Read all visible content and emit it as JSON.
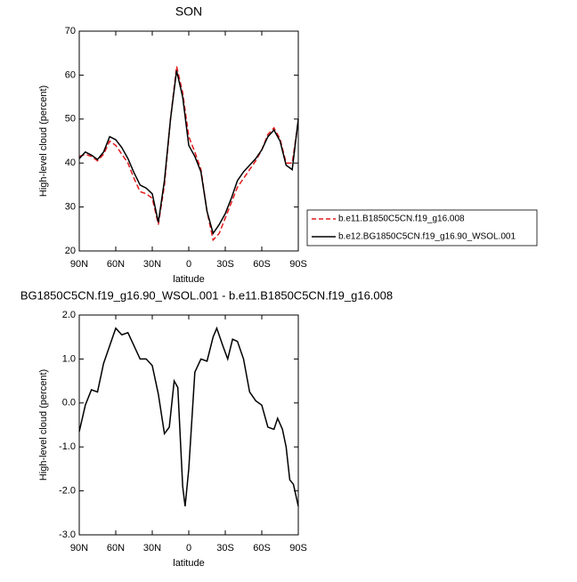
{
  "chart_data": [
    {
      "type": "line",
      "title": "SON",
      "x_label": "latitude",
      "y_label": "High-level cloud (percent)",
      "xlim": [
        90,
        -90
      ],
      "ylim": [
        20,
        70
      ],
      "xticks": [
        {
          "value": 90,
          "label": "90N"
        },
        {
          "value": 60,
          "label": "60N"
        },
        {
          "value": 30,
          "label": "30N"
        },
        {
          "value": 0,
          "label": "0"
        },
        {
          "value": -30,
          "label": "30S"
        },
        {
          "value": -60,
          "label": "60S"
        },
        {
          "value": -90,
          "label": "90S"
        }
      ],
      "yticks": [
        20,
        30,
        40,
        50,
        60,
        70
      ],
      "legend": "right",
      "x": [
        90,
        85,
        80,
        75,
        70,
        65,
        60,
        55,
        50,
        45,
        40,
        35,
        30,
        25,
        20,
        15,
        10,
        5,
        0,
        -5,
        -10,
        -15,
        -20,
        -25,
        -30,
        -35,
        -40,
        -45,
        -50,
        -55,
        -60,
        -65,
        -70,
        -75,
        -80,
        -85,
        -90
      ],
      "series": [
        {
          "name": "b.e11.B1850C5CN.f19_g16.008",
          "color": "#e41a1c",
          "dash": true,
          "values": [
            41.5,
            42.0,
            41.5,
            40.5,
            42.0,
            45.0,
            44.0,
            42.0,
            40.0,
            36.5,
            33.5,
            33.0,
            32.0,
            26.0,
            35.0,
            50.0,
            62.0,
            56.0,
            46.0,
            42.5,
            38.5,
            29.0,
            22.5,
            24.0,
            27.5,
            31.0,
            34.5,
            36.5,
            38.5,
            40.5,
            43.0,
            46.5,
            48.0,
            45.5,
            40.0,
            40.0,
            49.5
          ]
        },
        {
          "name": "b.e12.BG1850C5CN.f19_g16.90_WSOL.001",
          "color": "#000000",
          "dash": false,
          "values": [
            41.0,
            42.5,
            41.8,
            40.8,
            42.5,
            46.0,
            45.3,
            43.5,
            41.0,
            37.8,
            35.0,
            34.3,
            33.0,
            26.5,
            36.0,
            50.0,
            61.0,
            55.0,
            44.0,
            41.5,
            38.0,
            29.0,
            24.0,
            26.0,
            28.5,
            32.0,
            36.0,
            38.0,
            39.5,
            41.0,
            43.0,
            46.0,
            47.5,
            45.0,
            39.5,
            38.5,
            50.0
          ]
        }
      ]
    },
    {
      "type": "line",
      "title": "BG1850C5CN.f19_g16.90_WSOL.001 - b.e11.B1850C5CN.f19_g16.008",
      "x_label": "latitude",
      "y_label": "High-level cloud (percent)",
      "xlim": [
        90,
        -90
      ],
      "ylim": [
        -3,
        2
      ],
      "xticks": [
        {
          "value": 90,
          "label": "90N"
        },
        {
          "value": 60,
          "label": "60N"
        },
        {
          "value": 30,
          "label": "30N"
        },
        {
          "value": 0,
          "label": "0"
        },
        {
          "value": -30,
          "label": "30S"
        },
        {
          "value": -60,
          "label": "60S"
        },
        {
          "value": -90,
          "label": "90S"
        }
      ],
      "yticks": [
        {
          "value": -3,
          "label": "-3.0"
        },
        {
          "value": -2,
          "label": "-2.0"
        },
        {
          "value": -1,
          "label": "-1.0"
        },
        {
          "value": 0,
          "label": "0.0"
        },
        {
          "value": 1,
          "label": "1.0"
        },
        {
          "value": 2,
          "label": "2.0"
        }
      ],
      "x": [
        90,
        85,
        80,
        75,
        70,
        65,
        60,
        55,
        50,
        45,
        40,
        35,
        30,
        25,
        20,
        16,
        12,
        9,
        5,
        3,
        0,
        -5,
        -10,
        -15,
        -20,
        -23,
        -28,
        -32,
        -36,
        -40,
        -45,
        -50,
        -55,
        -60,
        -65,
        -70,
        -73,
        -77,
        -80,
        -83,
        -86,
        -90
      ],
      "series": [
        {
          "color": "#000000",
          "dash": false,
          "values": [
            -0.65,
            -0.05,
            0.3,
            0.25,
            0.9,
            1.3,
            1.7,
            1.55,
            1.6,
            1.3,
            1.0,
            1.0,
            0.85,
            0.2,
            -0.7,
            -0.55,
            0.5,
            0.35,
            -1.9,
            -2.35,
            -1.5,
            0.7,
            1.0,
            0.95,
            1.5,
            1.7,
            1.3,
            1.0,
            1.45,
            1.4,
            1.0,
            0.25,
            0.05,
            -0.05,
            -0.55,
            -0.6,
            -0.35,
            -0.6,
            -1.0,
            -1.75,
            -1.85,
            -2.35
          ]
        }
      ]
    }
  ]
}
